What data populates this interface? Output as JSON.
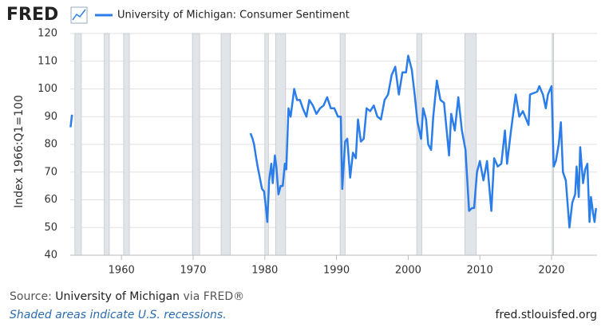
{
  "chart_data": {
    "type": "line",
    "logo": "FRED",
    "y_label": "Index 1966:Q1=100",
    "source_label": "Source:",
    "source": "University of Michigan",
    "source_via": "via FRED®",
    "note": "Shaded areas indicate U.S. recessions.",
    "site": "fred.stlouisfed.org",
    "x": [
      1952.9,
      1953.1,
      1965,
      1978.0,
      1978.3,
      1978.5,
      1978.8,
      1979.0,
      1979.3,
      1979.6,
      1979.9,
      1980.2,
      1980.35,
      1980.6,
      1980.9,
      1981.1,
      1981.4,
      1981.6,
      1981.9,
      1982.2,
      1982.5,
      1982.8,
      1983.0,
      1983.3,
      1983.6,
      1984.1,
      1984.5,
      1984.9,
      1985.3,
      1985.8,
      1986.2,
      1986.7,
      1987.2,
      1987.7,
      1988.2,
      1988.7,
      1989.2,
      1989.7,
      1990.2,
      1990.6,
      1990.8,
      1991.2,
      1991.5,
      1991.9,
      1992.3,
      1992.7,
      1993.0,
      1993.4,
      1993.8,
      1994.2,
      1994.7,
      1995.2,
      1995.7,
      1996.2,
      1996.7,
      1997.2,
      1997.7,
      1998.2,
      1998.7,
      1999.2,
      1999.7,
      2000.0,
      2000.5,
      2000.9,
      2001.3,
      2001.8,
      2002.1,
      2002.5,
      2002.8,
      2003.2,
      2003.5,
      2004.0,
      2004.5,
      2005.0,
      2005.7,
      2006.0,
      2006.5,
      2007.0,
      2007.5,
      2008.0,
      2008.5,
      2008.9,
      2009.2,
      2009.6,
      2010.0,
      2010.5,
      2011.0,
      2011.6,
      2012.0,
      2012.5,
      2013.0,
      2013.5,
      2013.8,
      2014.3,
      2015.0,
      2015.5,
      2016.0,
      2016.8,
      2017.0,
      2018.0,
      2018.3,
      2018.8,
      2019.2,
      2019.5,
      2020.0,
      2020.3,
      2020.6,
      2021.0,
      2021.3,
      2021.6,
      2022.0,
      2022.5,
      2022.9,
      2023.3,
      2023.5,
      2023.8,
      2024.0,
      2024.4,
      2024.7,
      2025.0,
      2025.3,
      2025.5,
      2025.8,
      2026.0,
      2026.2
    ],
    "series": [
      {
        "name": "University of Michigan: Consumer Sentiment",
        "color": "#2b7de9",
        "values": [
          86.2,
          90.7,
          null,
          84,
          82,
          80,
          75,
          72,
          68,
          64,
          63,
          56,
          52,
          67,
          73,
          66,
          76,
          72,
          62,
          65,
          65,
          73,
          71,
          93,
          90,
          100,
          96,
          96,
          93,
          90,
          96,
          94,
          91,
          93,
          94,
          97,
          93,
          93,
          90,
          90,
          63.9,
          81,
          82,
          68,
          77,
          75,
          89,
          81,
          82,
          93,
          92,
          94,
          90,
          89,
          96,
          98,
          105,
          108,
          98,
          106,
          106,
          112,
          107,
          98,
          88,
          82,
          93,
          89,
          80,
          78,
          90,
          103,
          96,
          95,
          76,
          91,
          85,
          97,
          85,
          78,
          56,
          57,
          57,
          70,
          74,
          67,
          74,
          56,
          75,
          72,
          73,
          85,
          73,
          84,
          98,
          90,
          92,
          87,
          98,
          99,
          101,
          98,
          93,
          98,
          101,
          72,
          74,
          80,
          88,
          70,
          67,
          50,
          59,
          62,
          72,
          61,
          79,
          66,
          71,
          73,
          52,
          61,
          55,
          52,
          57
        ]
      }
    ],
    "recessions": [
      [
        1953.5,
        1954.4
      ],
      [
        1957.6,
        1958.3
      ],
      [
        1960.3,
        1961.1
      ],
      [
        1969.9,
        1970.9
      ],
      [
        1973.9,
        1975.2
      ],
      [
        1980.0,
        1980.5
      ],
      [
        1981.5,
        1982.9
      ],
      [
        1990.5,
        1991.2
      ],
      [
        2001.2,
        2001.9
      ],
      [
        2007.9,
        2009.5
      ],
      [
        2020.1,
        2020.3
      ]
    ],
    "xlim": [
      1952.85,
      2026.35
    ],
    "xticks": [
      1960,
      1970,
      1980,
      1990,
      2000,
      2010,
      2020
    ],
    "ylim": [
      40,
      120
    ],
    "yticks": [
      40,
      50,
      60,
      70,
      80,
      90,
      100,
      110,
      120
    ],
    "grid": true
  }
}
